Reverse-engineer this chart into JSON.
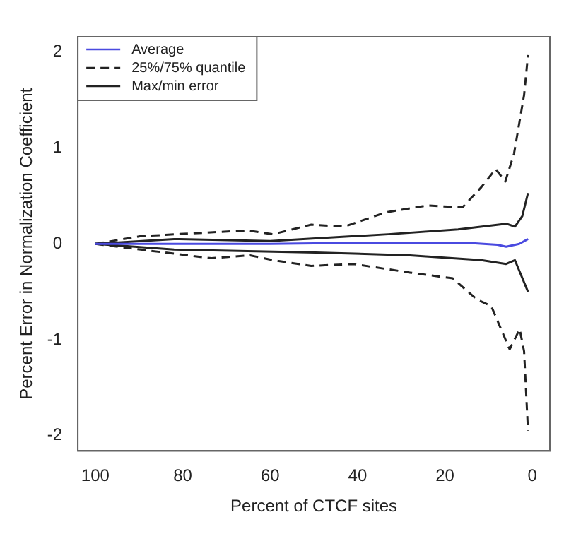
{
  "chart_data": {
    "type": "line",
    "xlabel": "Percent of CTCF sites",
    "ylabel": "Percent Error in Normalization Coefficient",
    "xlim": [
      104,
      -4
    ],
    "xticks": [
      100,
      80,
      60,
      40,
      20,
      0
    ],
    "ylim": [
      -2.16,
      2.16
    ],
    "yticks": [
      -2,
      -1,
      0,
      1,
      2
    ],
    "grid": false,
    "legend": "top left",
    "marker": "none",
    "series": [
      {
        "name": "Average",
        "color": "#4a4ae0",
        "line_style": "solid",
        "x": [
          100,
          80,
          60,
          40,
          30,
          15,
          8,
          6,
          3,
          1
        ],
        "values": [
          0,
          0,
          0,
          0.01,
          0.01,
          0.01,
          -0.01,
          -0.03,
          0,
          0.05
        ]
      },
      {
        "name": "25%/75% quantile",
        "color": "#222222",
        "line_style": "dashed",
        "x": [
          100,
          89.6,
          65.3,
          59.4,
          50.6,
          43,
          33.4,
          24,
          16,
          11.7,
          8.4,
          6.2,
          4.2,
          1.9,
          1
        ],
        "values": [
          0,
          0.08,
          0.14,
          0.1,
          0.2,
          0.18,
          0.33,
          0.4,
          0.38,
          0.59,
          0.78,
          0.65,
          0.94,
          1.55,
          1.97
        ]
      },
      {
        "color": "#222222",
        "line_style": "dashed",
        "x": [
          100,
          89.6,
          73.4,
          64.6,
          59.4,
          50.6,
          41,
          28,
          18.2,
          12.7,
          9.4,
          5.2,
          2.9,
          1.9,
          1
        ],
        "values": [
          0,
          -0.06,
          -0.15,
          -0.12,
          -0.17,
          -0.23,
          -0.21,
          -0.3,
          -0.36,
          -0.58,
          -0.65,
          -1.1,
          -0.89,
          -1.12,
          -1.95
        ]
      },
      {
        "name": "Max/min error",
        "color": "#222222",
        "line_style": "solid",
        "x": [
          100,
          82,
          60,
          33,
          17,
          6,
          4,
          2.3,
          1
        ],
        "values": [
          0,
          0.05,
          0.03,
          0.1,
          0.15,
          0.21,
          0.18,
          0.29,
          0.53
        ]
      },
      {
        "color": "#222222",
        "line_style": "solid",
        "x": [
          100,
          82,
          49.6,
          28,
          11.7,
          6,
          4,
          1
        ],
        "values": [
          0,
          -0.06,
          -0.09,
          -0.12,
          -0.17,
          -0.21,
          -0.17,
          -0.5
        ]
      }
    ]
  }
}
